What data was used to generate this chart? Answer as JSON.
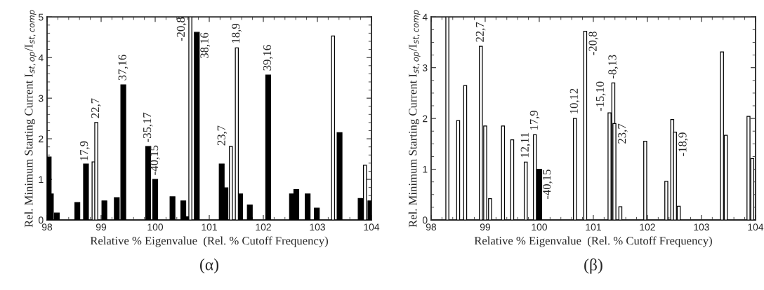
{
  "chart_data": [
    {
      "type": "bar",
      "title": "(α)",
      "xlabel": "Relative % Eigenvalue  (Rel. % Cutoff Frequency)",
      "ylabel": "Rel. Minimum Starting Current I$_{st,op}$/I$_{st,comp}$",
      "xlim": [
        98,
        104
      ],
      "xticks": [
        98,
        99,
        100,
        101,
        102,
        103,
        104
      ],
      "ylim": [
        0,
        5
      ],
      "yticks": [
        0,
        1,
        2,
        3,
        4,
        5
      ],
      "grid": false,
      "legend": false,
      "series": [
        {
          "color": "#000000",
          "x": [
            98.03,
            98.07,
            98.18,
            98.56,
            98.72,
            99.06,
            99.29,
            99.41,
            99.87,
            100.0,
            100.32,
            100.52,
            100.6,
            100.77,
            101.23,
            101.3,
            101.57,
            101.75,
            102.09,
            102.53,
            102.61,
            102.82,
            102.99,
            103.41,
            103.8,
            103.98
          ],
          "values": [
            1.55,
            0.64,
            0.17,
            0.43,
            1.38,
            0.47,
            0.55,
            3.33,
            1.81,
            1.0,
            0.57,
            0.47,
            0.08,
            4.62,
            1.38,
            0.79,
            0.64,
            0.37,
            3.57,
            0.64,
            0.75,
            0.64,
            0.29,
            2.15,
            0.53,
            0.47
          ]
        },
        {
          "color": "#ffffff",
          "x": [
            98.86,
            98.91,
            100.65,
            101.4,
            101.51,
            103.29,
            103.88
          ],
          "values": [
            1.43,
            2.4,
            5.0,
            1.81,
            4.24,
            4.53,
            1.35
          ]
        }
      ],
      "annotations": [
        {
          "text": "17,9",
          "x": 98.86,
          "y": 1.43
        },
        {
          "text": "22,7",
          "x": 98.91,
          "y": 2.4
        },
        {
          "text": "37,16",
          "x": 99.41,
          "y": 3.33
        },
        {
          "text": "-35,17",
          "x": 99.87,
          "y": 1.81
        },
        {
          "text": "-40,15",
          "x": 100.0,
          "y": 1.0
        },
        {
          "text": "-20,8",
          "x": 100.65,
          "y": 5.0
        },
        {
          "text": "38,16",
          "x": 100.77,
          "y": 4.62
        },
        {
          "text": "23,7",
          "x": 101.4,
          "y": 1.81
        },
        {
          "text": "18,9",
          "x": 101.51,
          "y": 4.24
        },
        {
          "text": "39,16",
          "x": 102.09,
          "y": 3.57
        }
      ]
    },
    {
      "type": "bar",
      "title": "(β)",
      "xlabel": "Relative % Eigenvalue  (Rel. % Cutoff Frequency)",
      "ylabel": "Rel. Minimum Starting Current I$_{st,op}$/I$_{st,comp}$",
      "xlim": [
        98,
        104
      ],
      "xticks": [
        98,
        99,
        100,
        101,
        102,
        103,
        104
      ],
      "ylim": [
        0,
        4
      ],
      "yticks": [
        0,
        1,
        2,
        3,
        4
      ],
      "grid": false,
      "legend": false,
      "series": [
        {
          "color": "#ffffff",
          "x": [
            98.3,
            98.5,
            98.63,
            98.92,
            99.0,
            99.09,
            99.33,
            99.5,
            99.75,
            99.92,
            100.66,
            100.85,
            101.3,
            101.37,
            101.39,
            101.5,
            101.96,
            102.35,
            102.46,
            102.51,
            102.58,
            103.38,
            103.45,
            103.87,
            103.94
          ],
          "values": [
            4.0,
            1.96,
            2.65,
            3.42,
            1.85,
            0.42,
            1.85,
            1.58,
            1.14,
            1.68,
            2.0,
            3.72,
            2.11,
            2.7,
            1.9,
            0.26,
            1.55,
            0.76,
            1.98,
            1.73,
            0.27,
            3.31,
            1.67,
            2.04,
            1.21
          ]
        },
        {
          "color": "#000000",
          "x": [
            100.0
          ],
          "values": [
            1.0
          ]
        }
      ],
      "annotations": [
        {
          "text": "22,7",
          "x": 98.92,
          "y": 3.42
        },
        {
          "text": "12,11",
          "x": 99.75,
          "y": 1.14
        },
        {
          "text": "17,9",
          "x": 99.92,
          "y": 1.68
        },
        {
          "text": "-40,15",
          "x": 100.0,
          "y": 1.0
        },
        {
          "text": "10,12",
          "x": 100.66,
          "y": 2.0
        },
        {
          "text": "-20,8",
          "x": 100.85,
          "y": 3.72
        },
        {
          "text": "-15,10",
          "x": 101.3,
          "y": 2.11
        },
        {
          "text": "-8,13",
          "x": 101.37,
          "y": 2.7
        },
        {
          "text": "23,7",
          "x": 101.39,
          "y": 1.9
        },
        {
          "text": "-18,9",
          "x": 102.51,
          "y": 1.73
        }
      ]
    }
  ]
}
